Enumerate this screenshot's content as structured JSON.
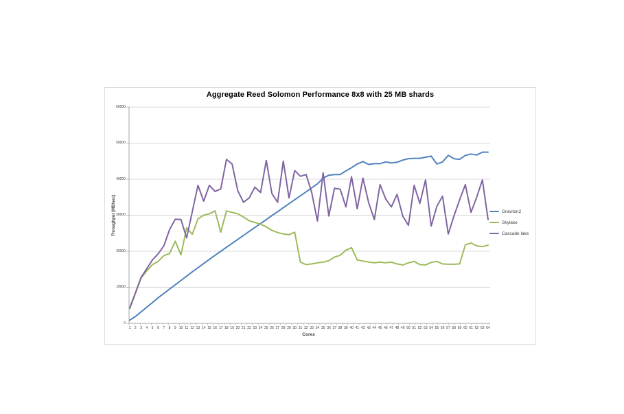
{
  "page": {
    "background": "#ffffff"
  },
  "chart_data": {
    "type": "line",
    "title": "Aggregate Reed Solomon Performance 8x8 with 25 MB shards",
    "xlabel": "Cores",
    "ylabel": "Throughput (MB/sec)",
    "ylim": [
      0,
      60000
    ],
    "ytick_step": 10000,
    "y_ticks": [
      0,
      10000,
      20000,
      30000,
      40000,
      50000,
      60000
    ],
    "grid": "horizontal",
    "legend_position": "right",
    "colors": {
      "gridline": "#d9d9d9",
      "axis": "#a6a6a6",
      "tick_text": "#404040",
      "title_text": "#000000"
    },
    "categories": [
      1,
      2,
      3,
      4,
      5,
      6,
      7,
      8,
      9,
      10,
      11,
      12,
      13,
      14,
      15,
      16,
      17,
      18,
      19,
      20,
      21,
      22,
      23,
      24,
      25,
      26,
      27,
      28,
      29,
      30,
      31,
      32,
      33,
      34,
      35,
      36,
      37,
      38,
      39,
      40,
      41,
      42,
      43,
      44,
      45,
      46,
      47,
      48,
      49,
      50,
      51,
      52,
      53,
      54,
      55,
      56,
      57,
      58,
      59,
      60,
      61,
      62,
      63,
      64
    ],
    "series": [
      {
        "name": "Graviton2",
        "color": "#4F81BD",
        "values": [
          900,
          1900,
          3200,
          4500,
          5800,
          7100,
          8300,
          9500,
          10700,
          11900,
          13100,
          14300,
          15450,
          16600,
          17750,
          18900,
          20000,
          21100,
          22200,
          23300,
          24400,
          25500,
          26600,
          27700,
          28800,
          29900,
          31000,
          32100,
          33200,
          34300,
          35400,
          36500,
          37600,
          38700,
          40300,
          41100,
          41300,
          41300,
          42300,
          43200,
          44200,
          44900,
          44100,
          44300,
          44300,
          44800,
          44500,
          44700,
          45300,
          45700,
          45800,
          45800,
          46100,
          46400,
          44200,
          44800,
          46600,
          45700,
          45500,
          46600,
          47000,
          46700,
          47500,
          47500
        ]
      },
      {
        "name": "Skylake",
        "color": "#9BBB59",
        "values": [
          4100,
          8300,
          12600,
          14600,
          16300,
          17200,
          18800,
          19400,
          22800,
          19000,
          26500,
          24700,
          29000,
          30000,
          30400,
          31200,
          25300,
          31200,
          30800,
          30400,
          29500,
          28500,
          28000,
          27500,
          26800,
          25800,
          25200,
          24800,
          24600,
          25300,
          17000,
          16300,
          16500,
          16800,
          17000,
          17400,
          18400,
          18900,
          20300,
          21000,
          17600,
          17300,
          17000,
          16800,
          17000,
          16800,
          17000,
          16500,
          16200,
          16800,
          17200,
          16300,
          16200,
          16900,
          17200,
          16500,
          16400,
          16400,
          16500,
          21800,
          22300,
          21500,
          21300,
          21700
        ]
      },
      {
        "name": "Cascade lake",
        "color": "#8064A2",
        "values": [
          4300,
          8500,
          12800,
          15200,
          17600,
          19300,
          21500,
          26000,
          28900,
          28800,
          23700,
          31000,
          38300,
          33900,
          38300,
          36600,
          37300,
          45500,
          44200,
          36800,
          33600,
          34800,
          37800,
          36300,
          45200,
          36000,
          33600,
          45000,
          34800,
          42400,
          40800,
          41300,
          36300,
          28400,
          41800,
          29800,
          37500,
          37200,
          32300,
          40700,
          31800,
          40300,
          33500,
          28800,
          38500,
          34500,
          32300,
          35800,
          29800,
          27200,
          38300,
          33300,
          39800,
          27000,
          32500,
          35300,
          24800,
          29800,
          34300,
          38500,
          30800,
          35000,
          39800,
          28800
        ]
      }
    ]
  }
}
